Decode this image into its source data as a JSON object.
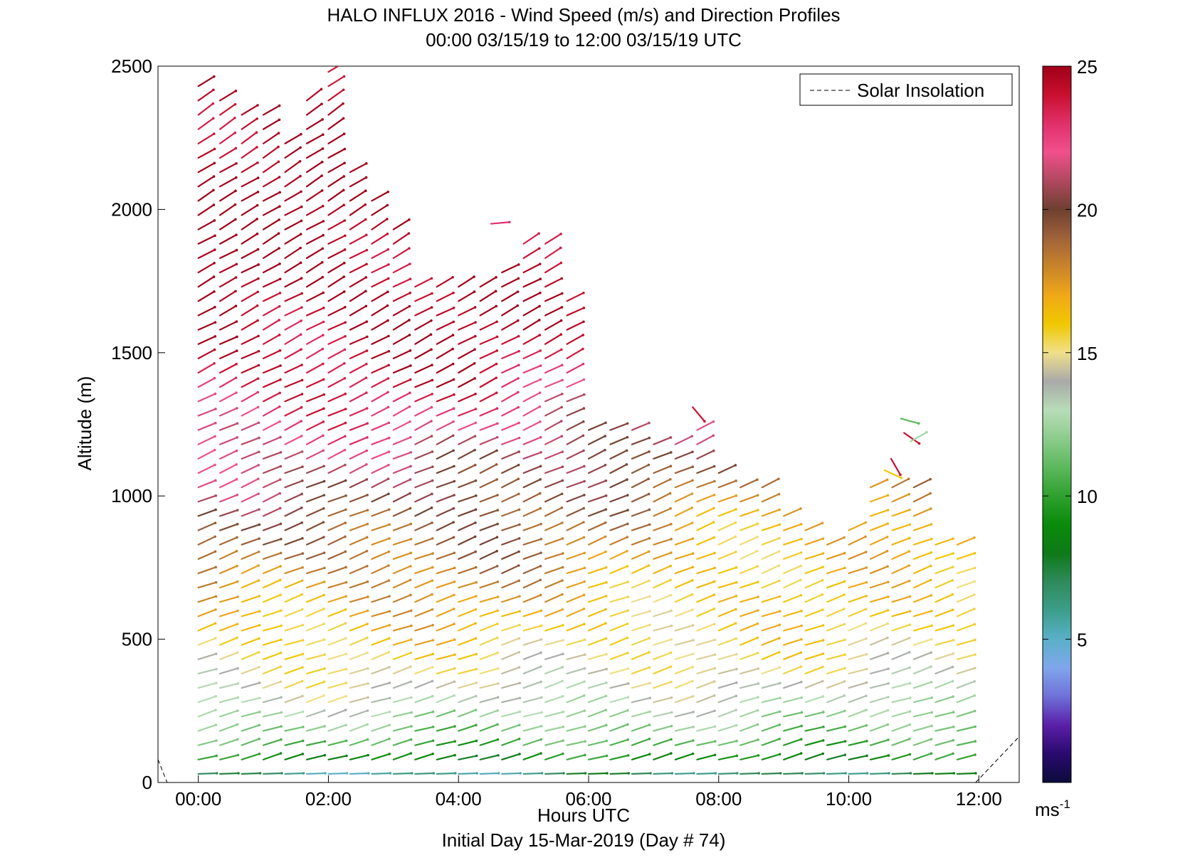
{
  "chart_data": {
    "type": "wind-barb profile",
    "title": "HALO INFLUX 2016 - Wind Speed (m/s) and Direction Profiles",
    "subtitle": "00:00 03/15/19 to 12:00 03/15/19  UTC",
    "xlabel": "Hours UTC",
    "footer": "Initial Day 15-Mar-2019 (Day # 74)",
    "ylabel": "Altitude (m)",
    "xlim": [
      -0.62,
      12.62
    ],
    "ylim": [
      0,
      2500
    ],
    "x_ticks": [
      0,
      2,
      4,
      6,
      8,
      10,
      12
    ],
    "x_tick_labels": [
      "00:00",
      "02:00",
      "04:00",
      "06:00",
      "08:00",
      "10:00",
      "12:00"
    ],
    "y_ticks": [
      0,
      500,
      1000,
      1500,
      2000,
      2500
    ],
    "y_tick_labels": [
      "0",
      "500",
      "1000",
      "1500",
      "2000",
      "2500"
    ],
    "legend": {
      "position": "top-right",
      "entries": [
        {
          "label": "Solar Insolation",
          "style": "dashed",
          "color": "#000000"
        }
      ]
    },
    "colorbar": {
      "range": [
        0,
        25
      ],
      "ticks": [
        5,
        10,
        15,
        20,
        25
      ],
      "tick_labels": [
        "5",
        "10",
        "15",
        "20",
        "25"
      ],
      "unit_base": "ms",
      "unit_exp": "-1",
      "colors": [
        "#0b0b3b",
        "#2a0a6e",
        "#5a1fa8",
        "#6f70d8",
        "#7fa6ec",
        "#5ab0c8",
        "#3c9e8a",
        "#2f8a5c",
        "#0e7a18",
        "#0a8a0a",
        "#2fa02f",
        "#5cb85c",
        "#8ccc8c",
        "#b7ddb7",
        "#a9a9a9",
        "#f0e08a",
        "#f0c800",
        "#f0a818",
        "#c8842a",
        "#a0623a",
        "#6e4030",
        "#b04860",
        "#f0508c",
        "#e0306a",
        "#c8102e",
        "#a00018"
      ]
    },
    "profile_times_h": [
      0,
      0.333,
      0.667,
      1,
      1.333,
      1.667,
      2,
      2.333,
      2.667,
      3,
      3.333,
      3.667,
      4,
      4.333,
      4.667,
      5,
      5.333,
      5.667,
      6,
      6.333,
      6.667,
      7,
      7.333,
      7.667,
      8,
      8.333,
      8.667,
      9,
      9.333,
      9.667,
      10,
      10.333,
      10.667,
      11,
      11.333,
      11.667
    ],
    "profile_tops_m": [
      2470,
      2390,
      2360,
      2350,
      2230,
      2400,
      2490,
      2150,
      2060,
      1930,
      1770,
      1770,
      1730,
      1760,
      1810,
      1890,
      1900,
      1720,
      1240,
      1240,
      1240,
      1200,
      1200,
      1250,
      1110,
      1050,
      1040,
      960,
      900,
      860,
      880,
      1040,
      1050,
      1030,
      830,
      870
    ],
    "altitude_step_m": 50,
    "wind_direction_note": "wind from west-southwest; arrows point toward east-northeast",
    "speed_profile": {
      "altitude_m": [
        30,
        100,
        200,
        300,
        400,
        500,
        600,
        700,
        800,
        900,
        1000,
        1100,
        1200,
        1300,
        1400,
        1500,
        1700,
        2000,
        2500
      ],
      "early_mps": [
        6,
        10,
        12,
        14,
        15,
        16,
        17,
        18,
        19,
        19.5,
        20.5,
        21,
        22,
        23,
        24,
        24.5,
        25,
        25,
        25
      ],
      "late_mps": [
        7,
        10,
        12,
        13.5,
        15,
        15.5,
        16,
        16,
        16.5,
        17,
        18,
        19,
        20,
        21,
        22,
        22,
        22,
        22,
        22
      ]
    },
    "isolated_vectors": [
      {
        "time_h": 4.5,
        "alt_m": 1950,
        "speed_mps": 23,
        "dir_deg": 85
      },
      {
        "time_h": 7.6,
        "alt_m": 1310,
        "speed_mps": 24,
        "dir_deg": 140
      },
      {
        "time_h": 10.55,
        "alt_m": 1090,
        "speed_mps": 16,
        "dir_deg": 115
      },
      {
        "time_h": 10.65,
        "alt_m": 1130,
        "speed_mps": 24,
        "dir_deg": 150
      },
      {
        "time_h": 10.8,
        "alt_m": 1270,
        "speed_mps": 11,
        "dir_deg": 105
      },
      {
        "time_h": 10.85,
        "alt_m": 1220,
        "speed_mps": 24,
        "dir_deg": 125
      },
      {
        "time_h": 10.95,
        "alt_m": 1190,
        "speed_mps": 12.5,
        "dir_deg": 60
      }
    ],
    "solar_insolation_segments": [
      {
        "x_h": [
          -0.62,
          -0.48
        ],
        "y_m": [
          80,
          0
        ]
      },
      {
        "x_h": [
          11.95,
          12.62
        ],
        "y_m": [
          0,
          160
        ]
      }
    ]
  }
}
